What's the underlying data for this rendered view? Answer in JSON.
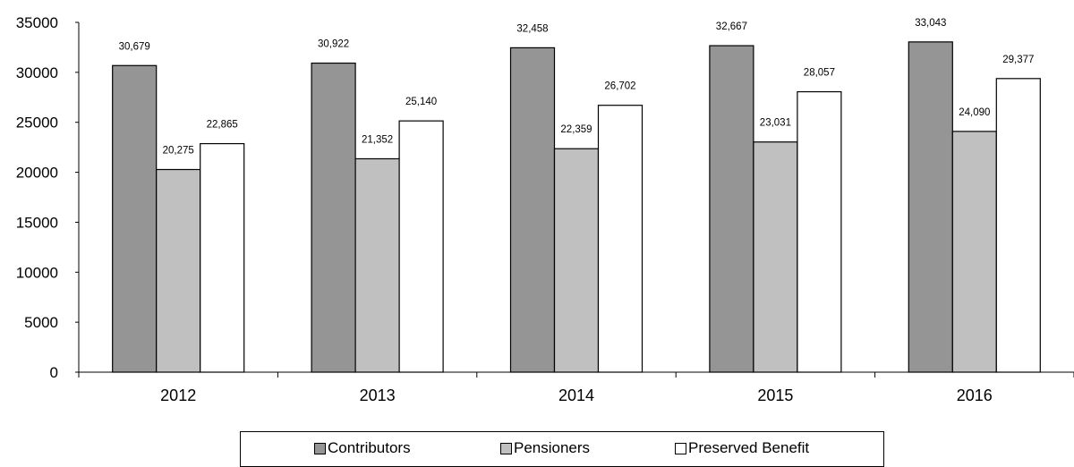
{
  "chart_data": {
    "type": "bar",
    "title": "",
    "xlabel": "",
    "ylabel": "",
    "categories": [
      "2012",
      "2013",
      "2014",
      "2015",
      "2016"
    ],
    "ylim": [
      0,
      35000
    ],
    "yticks": [
      "0",
      "5000",
      "10000",
      "15000",
      "20000",
      "25000",
      "30000",
      "35000"
    ],
    "grid": false,
    "legend_position": "bottom",
    "series": [
      {
        "name": "Contributors",
        "color": "#959595",
        "values": [
          30679,
          30922,
          32458,
          32667,
          33043
        ],
        "labels": [
          "30,679",
          "30,922",
          "32,458",
          "32,667",
          "33,043"
        ]
      },
      {
        "name": "Pensioners",
        "color": "#c0c0c0",
        "values": [
          20275,
          21352,
          22359,
          23031,
          24090
        ],
        "labels": [
          "20,275",
          "21,352",
          "22,359",
          "23,031",
          "24,090"
        ]
      },
      {
        "name": "Preserved Benefit",
        "color": "#ffffff",
        "values": [
          22865,
          25140,
          26702,
          28057,
          29377
        ],
        "labels": [
          "22,865",
          "25,140",
          "26,702",
          "28,057",
          "29,377"
        ]
      }
    ]
  }
}
